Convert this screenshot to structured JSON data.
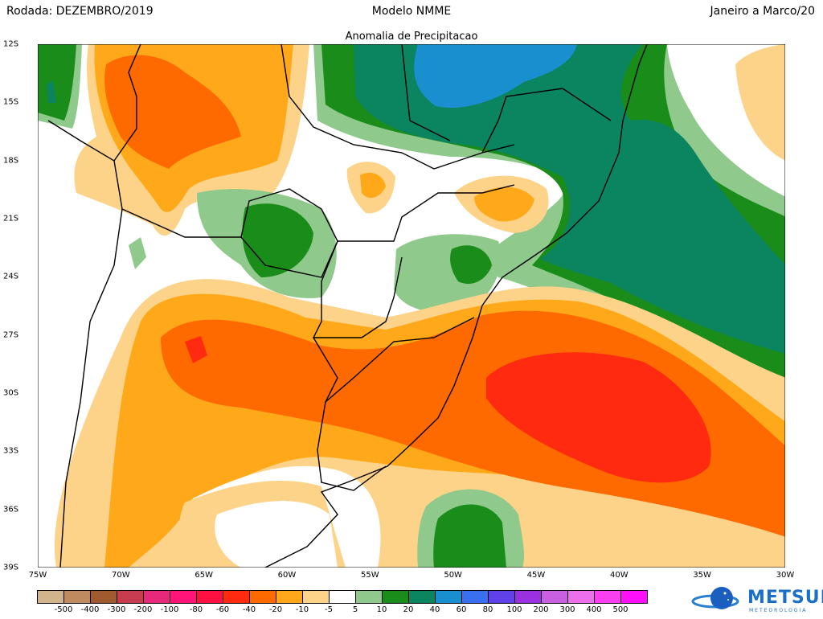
{
  "header": {
    "left": "Rodada: DEZEMBRO/2019",
    "center": "Modelo NMME",
    "right": "Janeiro a Marco/20",
    "subtitle": "Anomalia de Precipitacao"
  },
  "lat_labels": [
    "12S",
    "15S",
    "18S",
    "21S",
    "24S",
    "27S",
    "30S",
    "33S",
    "36S",
    "39S"
  ],
  "lon_labels": [
    "75W",
    "70W",
    "65W",
    "60W",
    "55W",
    "50W",
    "45W",
    "40W",
    "35W",
    "30W"
  ],
  "map": {
    "lon_range": [
      -75,
      -30
    ],
    "lat_range": [
      -39,
      -12
    ]
  },
  "colorbar": {
    "colors": [
      "#d2b48c",
      "#bf8a60",
      "#a05a30",
      "#c83c50",
      "#e8287a",
      "#ff1478",
      "#ff1040",
      "#ff2a10",
      "#ff6a00",
      "#ffa91a",
      "#fdd38a",
      "#ffffff",
      "#8fc98b",
      "#1a8c1a",
      "#0b8460",
      "#1a8fd0",
      "#3a70f0",
      "#6040e8",
      "#9a30e0",
      "#c860e0",
      "#ec70ec",
      "#f840f0",
      "#ff10f8"
    ],
    "labels": [
      "-500",
      "-400",
      "-300",
      "-200",
      "-100",
      "-80",
      "-60",
      "-40",
      "-20",
      "-10",
      "-5",
      "5",
      "10",
      "20",
      "40",
      "60",
      "80",
      "100",
      "200",
      "300",
      "400",
      "500"
    ]
  },
  "logo": {
    "name": "METSUL",
    "sub": "METEOROLOGIA"
  }
}
